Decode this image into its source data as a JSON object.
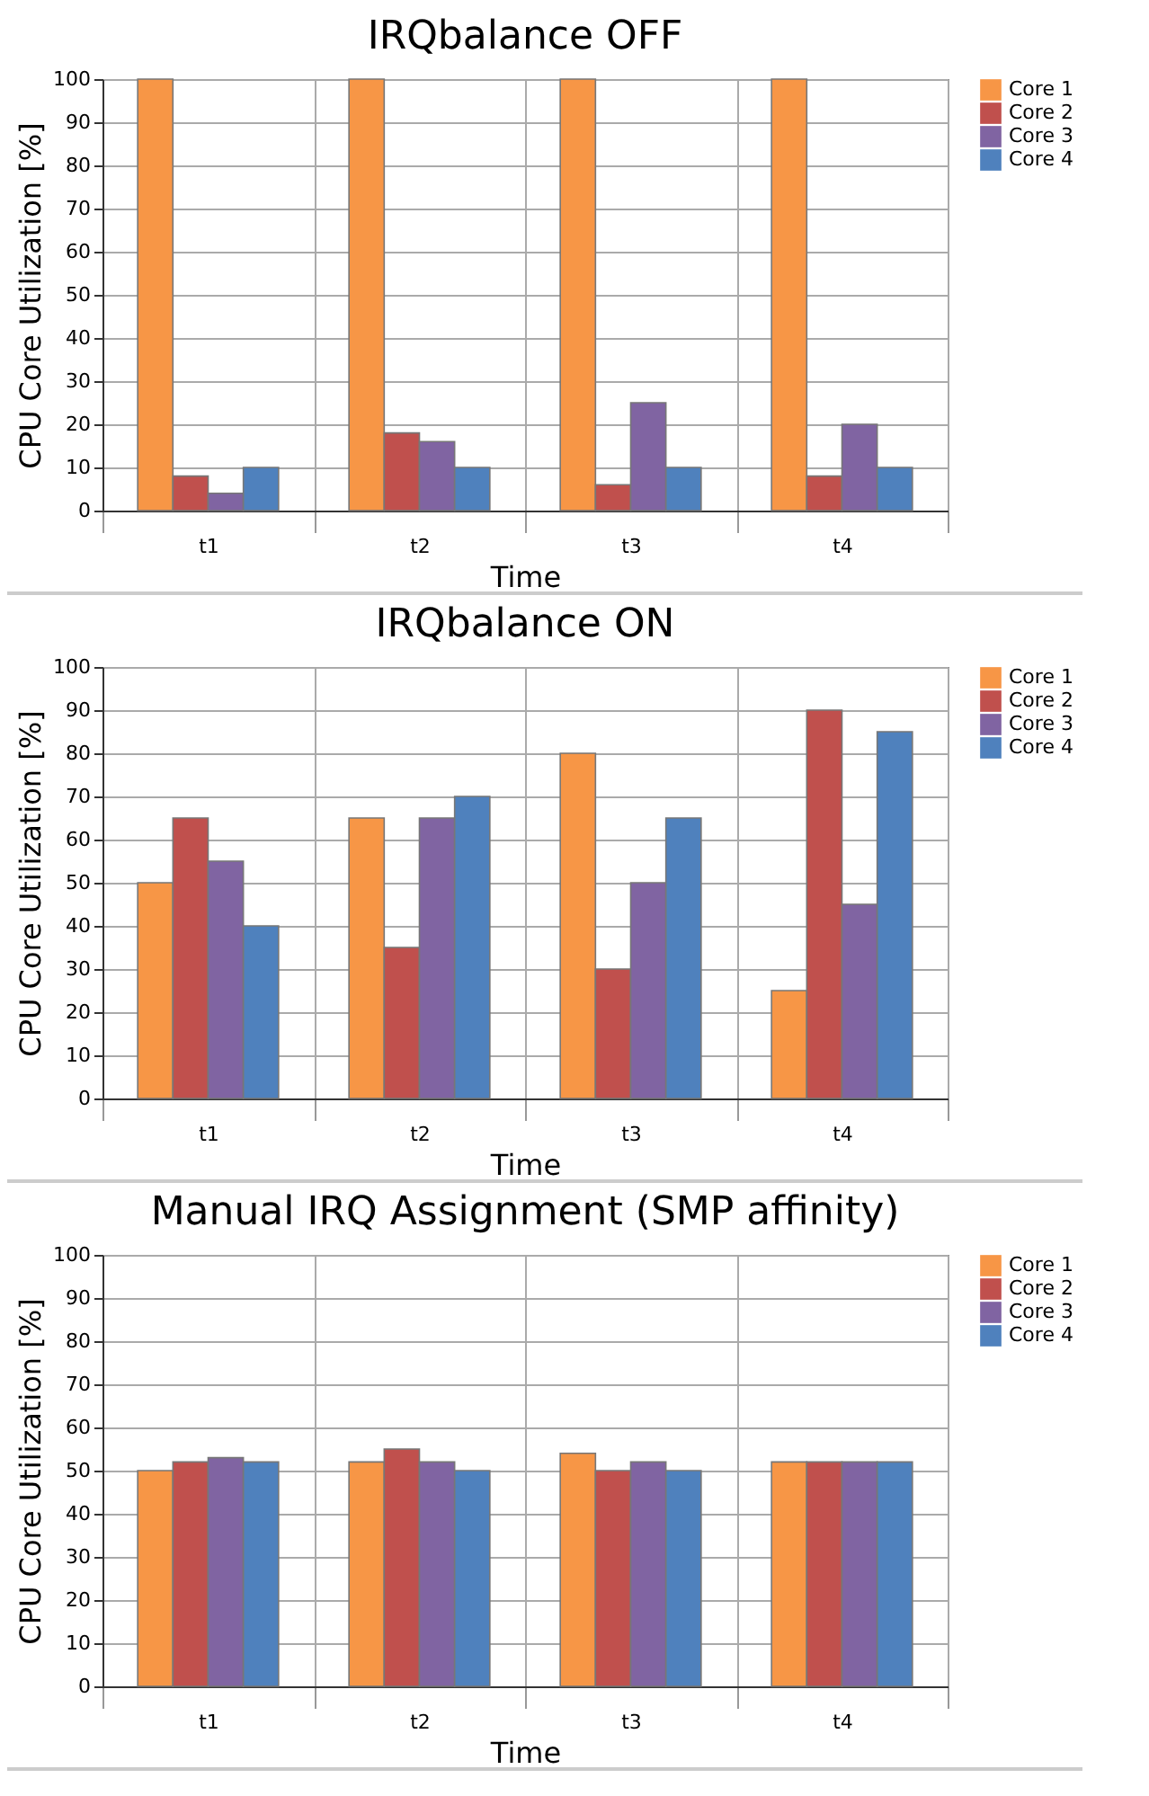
{
  "chart_data": [
    {
      "type": "bar",
      "title": "IRQbalance OFF",
      "xlabel": "Time",
      "ylabel": "CPU Core Utilization [%]",
      "categories": [
        "t1",
        "t2",
        "t3",
        "t4"
      ],
      "series": [
        {
          "name": "Core 1",
          "color": "#f79646",
          "values": [
            100,
            100,
            100,
            100
          ]
        },
        {
          "name": "Core 2",
          "color": "#c0504d",
          "values": [
            8,
            18,
            6,
            8
          ]
        },
        {
          "name": "Core 3",
          "color": "#8064a2",
          "values": [
            4,
            16,
            25,
            20
          ]
        },
        {
          "name": "Core 4",
          "color": "#4f81bd",
          "values": [
            10,
            10,
            10,
            10
          ]
        }
      ],
      "ylim": [
        0,
        100
      ],
      "yticks": [
        0,
        10,
        20,
        30,
        40,
        50,
        60,
        70,
        80,
        90,
        100
      ],
      "grid": true,
      "legend": "right"
    },
    {
      "type": "bar",
      "title": "IRQbalance ON",
      "xlabel": "Time",
      "ylabel": "CPU Core Utilization [%]",
      "categories": [
        "t1",
        "t2",
        "t3",
        "t4"
      ],
      "series": [
        {
          "name": "Core 1",
          "color": "#f79646",
          "values": [
            50,
            65,
            80,
            25
          ]
        },
        {
          "name": "Core 2",
          "color": "#c0504d",
          "values": [
            65,
            35,
            30,
            90
          ]
        },
        {
          "name": "Core 3",
          "color": "#8064a2",
          "values": [
            55,
            65,
            50,
            45
          ]
        },
        {
          "name": "Core 4",
          "color": "#4f81bd",
          "values": [
            40,
            70,
            65,
            85
          ]
        }
      ],
      "ylim": [
        0,
        100
      ],
      "yticks": [
        0,
        10,
        20,
        30,
        40,
        50,
        60,
        70,
        80,
        90,
        100
      ],
      "grid": true,
      "legend": "right"
    },
    {
      "type": "bar",
      "title": "Manual IRQ Assignment (SMP affinity)",
      "xlabel": "Time",
      "ylabel": "CPU Core Utilization [%]",
      "categories": [
        "t1",
        "t2",
        "t3",
        "t4"
      ],
      "series": [
        {
          "name": "Core 1",
          "color": "#f79646",
          "values": [
            50,
            52,
            54,
            52
          ]
        },
        {
          "name": "Core 2",
          "color": "#c0504d",
          "values": [
            52,
            55,
            50,
            52
          ]
        },
        {
          "name": "Core 3",
          "color": "#8064a2",
          "values": [
            53,
            52,
            52,
            52
          ]
        },
        {
          "name": "Core 4",
          "color": "#4f81bd",
          "values": [
            52,
            50,
            50,
            52
          ]
        }
      ],
      "ylim": [
        0,
        100
      ],
      "yticks": [
        0,
        10,
        20,
        30,
        40,
        50,
        60,
        70,
        80,
        90,
        100
      ],
      "grid": true,
      "legend": "right"
    }
  ]
}
